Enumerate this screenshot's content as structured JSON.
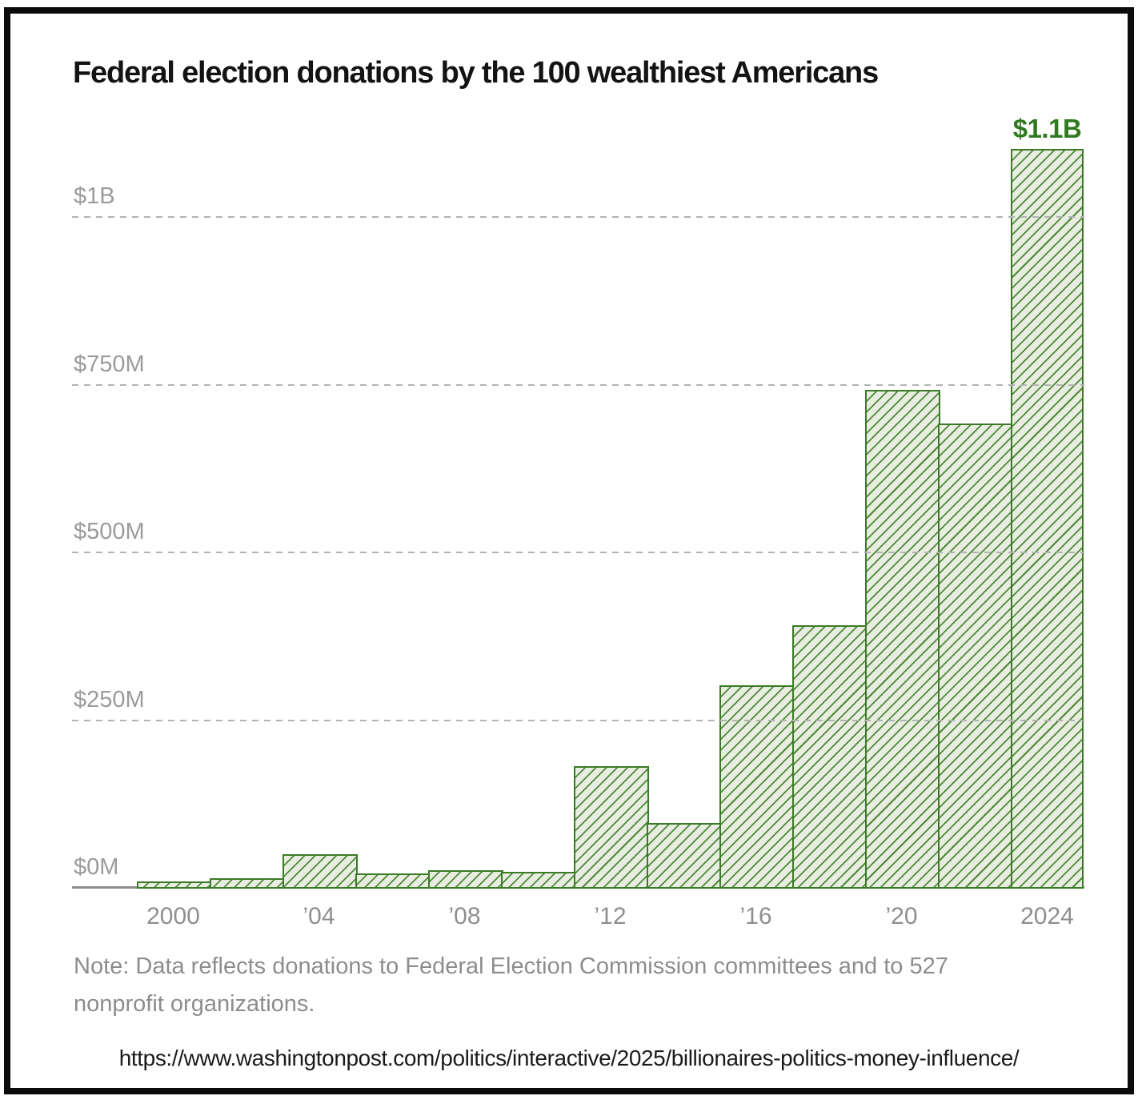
{
  "page": {
    "title": "Federal election donations by the 100 wealthiest Americans",
    "note": "Note: Data reflects donations to Federal Election Commission committees and to 527 nonprofit organizations.",
    "source_url": "https://www.washingtonpost.com/politics/interactive/2025/billionaires-politics-money-influence/"
  },
  "chart_data": {
    "type": "bar",
    "title": "Federal election donations by the 100 wealthiest Americans",
    "x_years": [
      2000,
      2002,
      2004,
      2006,
      2008,
      2010,
      2012,
      2014,
      2016,
      2018,
      2020,
      2022,
      2024
    ],
    "values_millions": [
      8,
      12,
      48,
      20,
      25,
      22,
      180,
      95,
      300,
      390,
      740,
      690,
      1100
    ],
    "unit": "USD millions",
    "ylim_millions": [
      0,
      1150
    ],
    "yticks": [
      {
        "value": 0,
        "label": "$0M"
      },
      {
        "value": 250,
        "label": "$250M"
      },
      {
        "value": 500,
        "label": "$500M"
      },
      {
        "value": 750,
        "label": "$750M"
      },
      {
        "value": 1000,
        "label": "$1B"
      }
    ],
    "xticks": [
      {
        "year": 2000,
        "label": "2000"
      },
      {
        "year": 2004,
        "label": "’04"
      },
      {
        "year": 2008,
        "label": "’08"
      },
      {
        "year": 2012,
        "label": "’12"
      },
      {
        "year": 2016,
        "label": "’16"
      },
      {
        "year": 2020,
        "label": "’20"
      },
      {
        "year": 2024,
        "label": "2024"
      }
    ],
    "annotation": {
      "year": 2024,
      "label": "$1.1B"
    },
    "grid": "horizontal dashed, drawn over bars",
    "legend": false,
    "bar_style": "light green fill with dark green diagonal hatch"
  },
  "colors": {
    "hatch": "#4a8a36",
    "bar_border": "#3b7b27",
    "bar_fill": "#e9ece0",
    "annot": "#2f7a1e",
    "ylabel": "#9b9b9b",
    "xlabel": "#8f8f8f",
    "note": "#8d8d8d",
    "grid": "#b3b3b3",
    "baseline": "#8b8b8b",
    "title": "#131313",
    "frame": "#0b0b0b",
    "url": "#1a1a1a"
  }
}
